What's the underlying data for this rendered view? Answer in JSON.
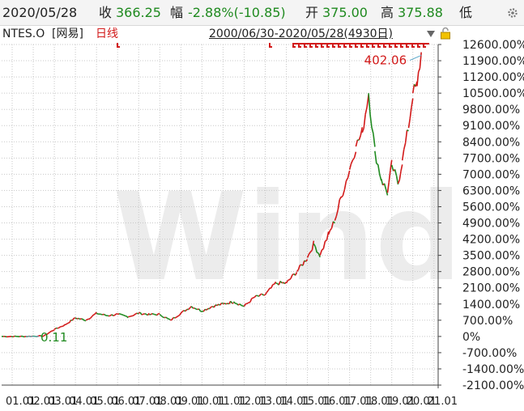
{
  "header": {
    "date": "2020/05/28",
    "close_label": "收",
    "close_value": "366.25",
    "change_label": "幅",
    "change_value": "-2.88%(-10.85)",
    "open_label": "开",
    "open_value": "375.00",
    "high_label": "高",
    "high_value": "375.88",
    "low_label": "低"
  },
  "info": {
    "ticker": "NTES.O",
    "company": "[网易]",
    "period": "日线",
    "range": "2000/06/30-2020/05/28(4930日)"
  },
  "colors": {
    "up": "#d21a1a",
    "down": "#1f8a1f",
    "grid": "#c8c8c8",
    "watermark": "#ececec"
  },
  "watermark": "Wind",
  "chart_data": {
    "type": "line",
    "title": "",
    "xlabel": "",
    "ylabel": "",
    "y_unit": "%",
    "ylim": [
      -2100,
      12600
    ],
    "y_ticks": [
      12600,
      11900,
      11200,
      10500,
      9800,
      9100,
      8400,
      7700,
      7000,
      6300,
      5600,
      4900,
      4200,
      3500,
      2800,
      2100,
      1400,
      700,
      0,
      -700,
      -1400,
      -2100
    ],
    "y_tick_labels": [
      "12600.00%",
      "11900.00%",
      "11200.00%",
      "10500.00%",
      "9800.00%",
      "9100.00%",
      "8400.00%",
      "7700.00%",
      "7000.00%",
      "6300.00%",
      "5600.00%",
      "4900.00%",
      "4200.00%",
      "3500.00%",
      "2800.00%",
      "2100.00%",
      "1400.00%",
      "700.00%",
      "0%",
      "-700.00%",
      "-1400.00%",
      "-2100.00%"
    ],
    "xlim": [
      2000.5,
      2021.2
    ],
    "x_tick_labels": [
      "01",
      "02",
      "03",
      "04",
      "05",
      "06",
      "07",
      "08",
      "09",
      "10",
      "11",
      "12",
      "13",
      "14",
      "15",
      "16",
      "17",
      "18",
      "19",
      "20",
      "21"
    ],
    "x_ticks": [
      2001,
      2002,
      2003,
      2004,
      2005,
      2006,
      2007,
      2008,
      2009,
      2010,
      2011,
      2012,
      2013,
      2014,
      2015,
      2016,
      2017,
      2018,
      2019,
      2020,
      2021
    ],
    "x_suffix_labels": [
      ".01",
      ".01",
      ".01",
      ".01",
      ".01",
      ".01",
      ".01",
      ".01",
      ".01",
      ".01",
      ".01",
      ".01",
      ".01",
      ".01",
      ".01",
      ".01",
      ".01",
      ".01",
      ".01",
      ".01",
      ".01"
    ],
    "grid": true,
    "series": [
      {
        "x": [
          2000.5,
          2001.5,
          2002.5,
          2003.0,
          2003.5,
          2004.0,
          2004.5,
          2005.0,
          2005.5,
          2006.0,
          2006.5,
          2007.0,
          2007.5,
          2008.0,
          2008.5,
          2009.0,
          2009.5,
          2010.0,
          2010.5,
          2011.0,
          2011.5,
          2012.0,
          2012.5,
          2013.0,
          2013.5,
          2014.0,
          2014.5,
          2015.0,
          2015.3,
          2015.6,
          2016.0,
          2016.3,
          2016.6,
          2017.0,
          2017.3,
          2017.6,
          2017.9,
          2018.2,
          2018.5,
          2018.8,
          2019.0,
          2019.3,
          2019.5,
          2019.8,
          2020.0,
          2020.2,
          2020.4
        ],
        "values": [
          0,
          0,
          20,
          300,
          500,
          800,
          700,
          1000,
          900,
          950,
          850,
          1000,
          950,
          950,
          700,
          1000,
          1300,
          1100,
          1300,
          1400,
          1500,
          1300,
          1700,
          1800,
          2300,
          2300,
          2800,
          3400,
          4000,
          3500,
          4400,
          5000,
          6000,
          7200,
          8200,
          8800,
          10500,
          8000,
          6800,
          6200,
          7400,
          6600,
          7600,
          9000,
          10500,
          10800,
          12200
        ]
      }
    ],
    "annotations": [
      {
        "text": "402.06",
        "x": 2020.4,
        "y": 12200,
        "color": "#d21a1a"
      },
      {
        "text": "0.11",
        "x": 2000.5,
        "y": 0,
        "color": "#1f8a1f"
      }
    ]
  }
}
